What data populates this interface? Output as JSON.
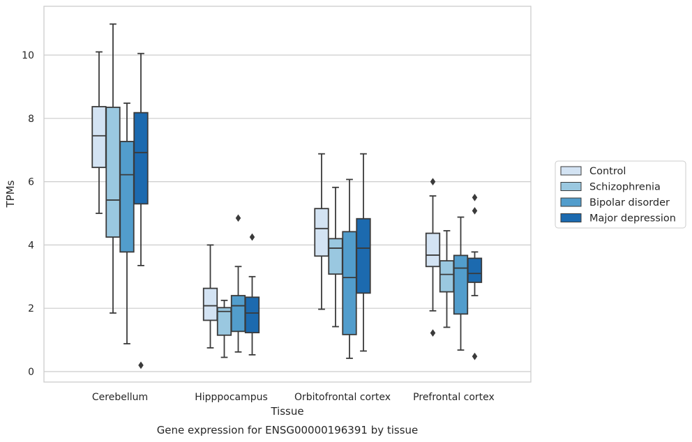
{
  "chart_data": {
    "type": "boxplot",
    "title": "Gene expression for ENSG00000196391 by tissue",
    "xlabel": "Tissue",
    "ylabel": "TPMs",
    "ylim": [
      -0.3,
      11.6
    ],
    "yticks": [
      0,
      2,
      4,
      6,
      8,
      10
    ],
    "grid": "horizontal",
    "legend_placement": "right",
    "categories": [
      "Cerebellum",
      "Hipppocampus",
      "Orbitofrontal cortex",
      "Prefrontal cortex"
    ],
    "series": [
      {
        "name": "Control",
        "color": "#d3e3f3",
        "boxes": [
          {
            "whislo": 5.0,
            "q1": 6.45,
            "med": 7.45,
            "q3": 8.37,
            "whishi": 10.1,
            "fliers": []
          },
          {
            "whislo": 0.75,
            "q1": 1.62,
            "med": 2.08,
            "q3": 2.63,
            "whishi": 4.0,
            "fliers": []
          },
          {
            "whislo": 1.97,
            "q1": 3.65,
            "med": 4.52,
            "q3": 5.15,
            "whishi": 6.88,
            "fliers": []
          },
          {
            "whislo": 1.92,
            "q1": 3.32,
            "med": 3.68,
            "q3": 4.37,
            "whishi": 5.55,
            "fliers": [
              1.22,
              6.0
            ]
          }
        ]
      },
      {
        "name": "Schizophrenia",
        "color": "#9ac8e0",
        "boxes": [
          {
            "whislo": 1.85,
            "q1": 4.25,
            "med": 5.42,
            "q3": 8.35,
            "whishi": 10.98,
            "fliers": []
          },
          {
            "whislo": 0.45,
            "q1": 1.15,
            "med": 1.9,
            "q3": 2.02,
            "whishi": 2.25,
            "fliers": []
          },
          {
            "whislo": 1.42,
            "q1": 3.08,
            "med": 3.9,
            "q3": 4.2,
            "whishi": 5.82,
            "fliers": []
          },
          {
            "whislo": 1.4,
            "q1": 2.52,
            "med": 3.07,
            "q3": 3.5,
            "whishi": 4.45,
            "fliers": []
          }
        ]
      },
      {
        "name": "Bipolar disorder",
        "color": "#529dcc",
        "boxes": [
          {
            "whislo": 0.88,
            "q1": 3.78,
            "med": 6.22,
            "q3": 7.27,
            "whishi": 8.48,
            "fliers": []
          },
          {
            "whislo": 0.62,
            "q1": 1.27,
            "med": 2.08,
            "q3": 2.4,
            "whishi": 3.32,
            "fliers": [
              4.85
            ]
          },
          {
            "whislo": 0.42,
            "q1": 1.17,
            "med": 2.97,
            "q3": 4.42,
            "whishi": 6.07,
            "fliers": []
          },
          {
            "whislo": 0.68,
            "q1": 1.82,
            "med": 3.27,
            "q3": 3.67,
            "whishi": 4.88,
            "fliers": []
          }
        ]
      },
      {
        "name": "Major depression",
        "color": "#1c6aaf",
        "boxes": [
          {
            "whislo": 3.35,
            "q1": 5.3,
            "med": 6.92,
            "q3": 8.18,
            "whishi": 10.05,
            "fliers": [
              0.2
            ]
          },
          {
            "whislo": 0.53,
            "q1": 1.23,
            "med": 1.85,
            "q3": 2.35,
            "whishi": 3.0,
            "fliers": [
              4.25
            ]
          },
          {
            "whislo": 0.65,
            "q1": 2.48,
            "med": 3.9,
            "q3": 4.83,
            "whishi": 6.88,
            "fliers": []
          },
          {
            "whislo": 2.4,
            "q1": 2.82,
            "med": 3.1,
            "q3": 3.58,
            "whishi": 3.78,
            "fliers": [
              0.48,
              5.08,
              5.5
            ]
          }
        ]
      }
    ]
  }
}
